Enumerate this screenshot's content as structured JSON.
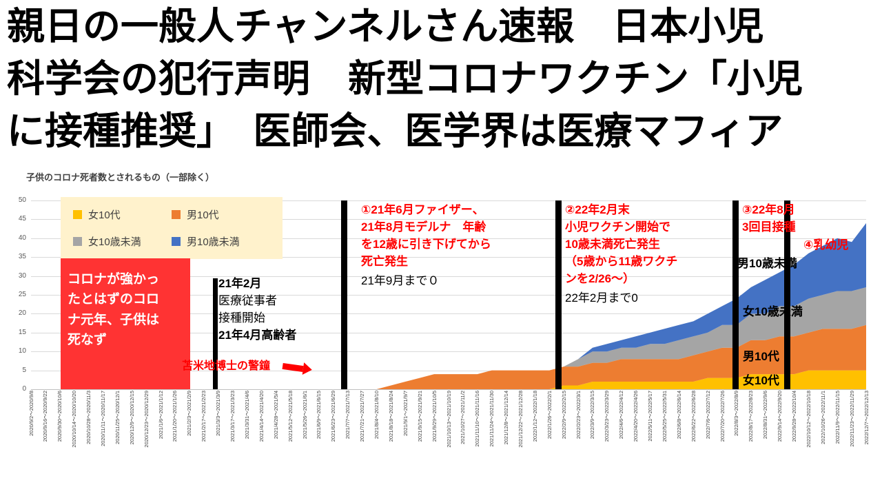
{
  "headline": {
    "lines": [
      "親日の一般人チャンネルさん速報　日本小児",
      "科学会の犯行声明　新型コロナワクチン「小児",
      "に接種推奨」　医師会、医学界は医療マフィア"
    ]
  },
  "chart": {
    "title": "子供のコロナ死者数とされるもの（一部除く）",
    "colors": {
      "accent_red": "#FF3333",
      "annotation_red": "#FF0000",
      "bar_black": "#000000",
      "legend_bg": "#FFF2CC"
    },
    "legend": [
      {
        "label": "女10代",
        "color": "#FFC000"
      },
      {
        "label": "男10代",
        "color": "#ED7D31"
      },
      {
        "label": "女10歳未満",
        "color": "#A5A5A5"
      },
      {
        "label": "男10歳未満",
        "color": "#4472C4"
      }
    ],
    "annotations": {
      "red_box": "コロナが強かっ\nたとはずのコロ\nナ元年、子供は\n死なず",
      "feb2021_bold1": "21年2月",
      "feb2021_line1": "医療従事者",
      "feb2021_line2": "接種開始",
      "feb2021_bold2": "21年4月高齢者",
      "tomabechi": "苫米地博士の警鐘",
      "note1_red": "①21年6月ファイザー、\n21年8月モデルナ　年齢\nを12歳に引き下げてから\n死亡発生",
      "note1_black": "21年9月まで０",
      "note2_red": "②22年2月末\n小児ワクチン開始で\n10歳未満死亡発生\n（5歳から11歳ワクチ\nンを2/26～）",
      "note2_black": "22年2月まで0",
      "note3_red": "③22年8月\n3回目接種",
      "note4_red": "④乳幼児",
      "label_m_u10": "男10歳未満",
      "label_f_u10": "女10歳未満",
      "label_m_10s": "男10代",
      "label_f_10s": "女10代"
    }
  },
  "chart_data": {
    "type": "area",
    "stacked": true,
    "title": "子供のコロナ死者数とされるもの（一部除く）",
    "ylim": [
      0,
      50
    ],
    "y_ticks": [
      0,
      5,
      10,
      15,
      20,
      25,
      30,
      35,
      40,
      45,
      50
    ],
    "grid": true,
    "legend_position": "top-left",
    "categories": [
      "2020/9/2～2020/9/8",
      "2020/9/16～2020/9/22",
      "2020/9/30～2020/10/6",
      "2020/10/14～2020/10/20",
      "2020/10/28～2020/11/3",
      "2020/11/11～2020/11/17",
      "2020/11/25～2020/12/1",
      "2020/12/9～2020/12/15",
      "2020/12/23～2020/12/29",
      "2021/1/6～2021/1/12",
      "2021/1/20～2021/1/26",
      "2021/2/3～2021/2/9",
      "2021/2/17～2021/2/23",
      "2021/3/3～2021/3/9",
      "2021/3/17～2021/3/23",
      "2021/3/31～2021/4/6",
      "2021/4/14～2021/4/20",
      "2021/4/28～2021/5/4",
      "2021/5/12～2021/5/18",
      "2021/5/26～2021/6/1",
      "2021/6/9～2021/6/15",
      "2021/6/23～2021/6/29",
      "2021/7/7～2021/7/13",
      "2021/7/21～2021/7/27",
      "2021/8/4～2021/8/10",
      "2021/8/18～2021/8/24",
      "2021/9/1～2021/9/7",
      "2021/9/15～2021/9/21",
      "2021/9/29～2021/10/5",
      "2021/10/13～2021/10/19",
      "2021/10/27～2021/11/2",
      "2021/11/10～2021/11/16",
      "2021/11/24～2021/11/30",
      "2021/12/8～2021/12/14",
      "2021/12/22～2021/12/28",
      "2022/1/12～2022/1/18",
      "2022/1/26～2022/2/1",
      "2022/2/9～2022/2/15",
      "2022/2/23～2022/3/1",
      "2022/3/9～2022/3/15",
      "2022/3/23～2022/3/29",
      "2022/4/6～2022/4/12",
      "2022/4/20～2022/4/26",
      "2022/5/11～2022/5/17",
      "2022/5/25～2022/5/31",
      "2022/6/8～2022/6/14",
      "2022/6/22～2022/6/28",
      "2022/7/6～2022/7/12",
      "2022/7/20～2022/7/26",
      "2022/8/3～2022/8/9",
      "2022/8/17～2022/8/23",
      "2022/8/31～2022/9/6",
      "2022/9/14～2022/9/20",
      "2022/9/28～2022/10/4",
      "2022/10/12～2022/10/18",
      "2022/10/26～2022/11/1",
      "2022/11/9～2022/11/15",
      "2022/11/23～2022/11/29",
      "2022/12/7～2022/12/13"
    ],
    "series": [
      {
        "name": "女10代",
        "color": "#FFC000",
        "values": [
          0,
          0,
          0,
          0,
          0,
          0,
          0,
          0,
          0,
          0,
          0,
          0,
          0,
          0,
          0,
          0,
          0,
          0,
          0,
          0,
          0,
          0,
          0,
          0,
          0,
          0,
          0,
          0,
          0,
          0,
          0,
          0,
          0,
          0,
          0,
          0,
          0,
          1,
          1,
          2,
          2,
          2,
          2,
          2,
          2,
          2,
          2,
          3,
          3,
          3,
          4,
          4,
          4,
          4,
          5,
          5,
          5,
          5,
          5
        ]
      },
      {
        "name": "男10代",
        "color": "#ED7D31",
        "values": [
          0,
          0,
          0,
          0,
          0,
          0,
          0,
          0,
          0,
          0,
          0,
          0,
          0,
          0,
          0,
          0,
          0,
          0,
          0,
          0,
          0,
          0,
          0,
          0,
          0,
          1,
          2,
          3,
          4,
          4,
          4,
          4,
          5,
          5,
          5,
          5,
          5,
          5,
          5,
          5,
          5,
          6,
          6,
          6,
          6,
          6,
          7,
          7,
          8,
          8,
          9,
          9,
          10,
          10,
          10,
          11,
          11,
          11,
          12
        ]
      },
      {
        "name": "女10歳未満",
        "color": "#A5A5A5",
        "values": [
          0,
          0,
          0,
          0,
          0,
          0,
          0,
          0,
          0,
          0,
          0,
          0,
          0,
          0,
          0,
          0,
          0,
          0,
          0,
          0,
          0,
          0,
          0,
          0,
          0,
          0,
          0,
          0,
          0,
          0,
          0,
          0,
          0,
          0,
          0,
          0,
          0,
          0,
          2,
          3,
          3,
          3,
          3,
          4,
          4,
          5,
          5,
          5,
          6,
          6,
          7,
          7,
          8,
          8,
          9,
          9,
          10,
          10,
          10
        ]
      },
      {
        "name": "男10歳未満",
        "color": "#4472C4",
        "values": [
          0,
          0,
          0,
          0,
          0,
          0,
          0,
          0,
          0,
          0,
          0,
          0,
          0,
          0,
          0,
          0,
          0,
          0,
          0,
          0,
          0,
          0,
          0,
          0,
          0,
          0,
          0,
          0,
          0,
          0,
          0,
          0,
          0,
          0,
          0,
          0,
          0,
          0,
          0,
          1,
          2,
          2,
          3,
          3,
          4,
          4,
          4,
          5,
          5,
          7,
          7,
          9,
          9,
          11,
          12,
          13,
          14,
          13,
          17
        ]
      }
    ]
  }
}
